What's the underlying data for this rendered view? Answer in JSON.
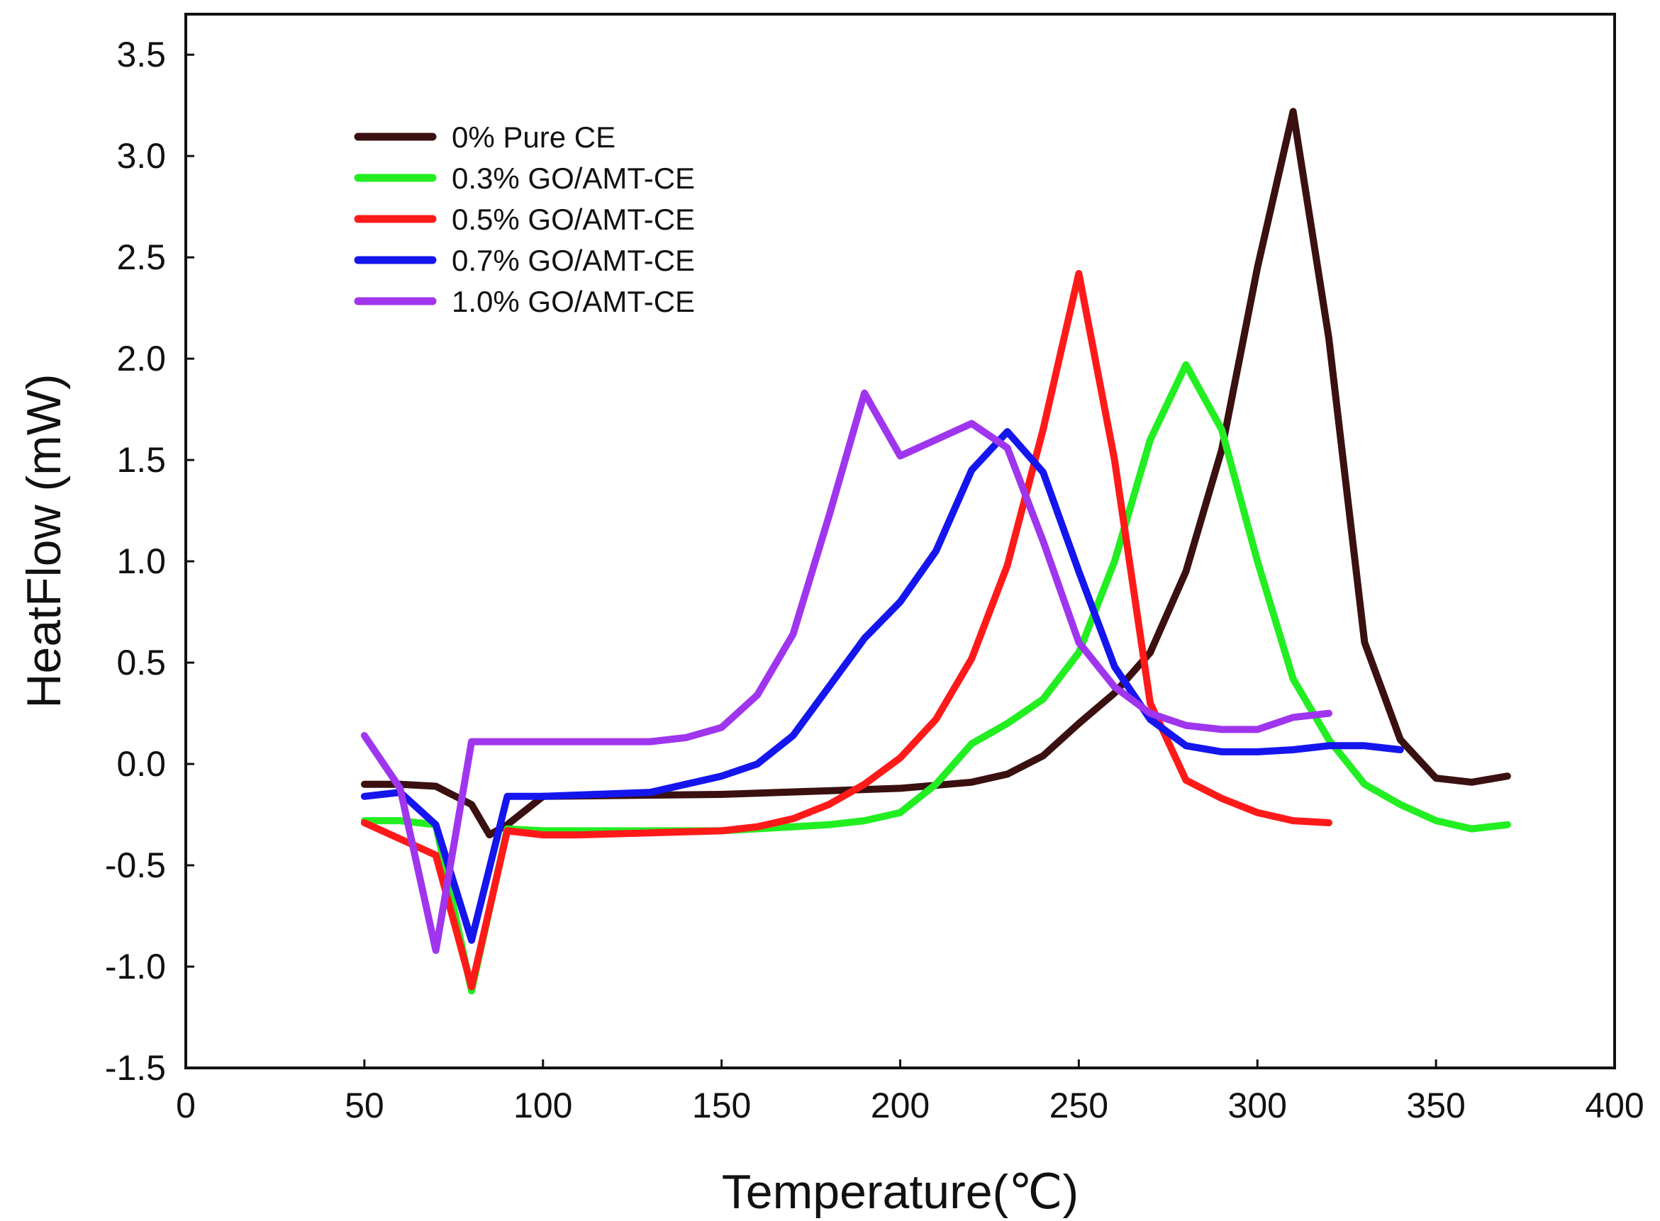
{
  "chart_data": {
    "type": "line",
    "title": "",
    "xlabel": "Temperature(℃)",
    "ylabel": "HeatFlow (mW)",
    "xlim": [
      0,
      400
    ],
    "ylim": [
      -1.5,
      3.7
    ],
    "xticks": [
      0,
      50,
      100,
      150,
      200,
      250,
      300,
      350,
      400
    ],
    "yticks": [
      -1.5,
      -1.0,
      -0.5,
      0.0,
      0.5,
      1.0,
      1.5,
      2.0,
      2.5,
      3.0,
      3.5
    ],
    "xtick_labels": [
      "0",
      "50",
      "100",
      "150",
      "200",
      "250",
      "300",
      "350",
      "400"
    ],
    "ytick_labels": [
      "-1.5",
      "-1.0",
      "-0.5",
      "0.0",
      "0.5",
      "1.0",
      "1.5",
      "2.0",
      "2.5",
      "3.0",
      "3.5"
    ],
    "grid": false,
    "legend_position": "top-left",
    "series": [
      {
        "name": "0% Pure CE",
        "color": "#3a1010",
        "x": [
          50,
          60,
          70,
          80,
          85,
          90,
          100,
          150,
          200,
          220,
          230,
          240,
          250,
          260,
          270,
          280,
          290,
          300,
          310,
          320,
          330,
          340,
          350,
          360,
          370
        ],
        "y": [
          -0.1,
          -0.1,
          -0.11,
          -0.2,
          -0.35,
          -0.3,
          -0.16,
          -0.15,
          -0.12,
          -0.09,
          -0.05,
          0.04,
          0.2,
          0.35,
          0.55,
          0.95,
          1.55,
          2.45,
          3.22,
          2.1,
          0.6,
          0.12,
          -0.07,
          -0.09,
          -0.06
        ]
      },
      {
        "name": "0.3% GO/AMT-CE",
        "color": "#22ee22",
        "x": [
          50,
          60,
          70,
          80,
          90,
          100,
          150,
          180,
          190,
          200,
          210,
          220,
          230,
          240,
          250,
          260,
          270,
          280,
          290,
          300,
          310,
          320,
          330,
          340,
          350,
          360,
          370
        ],
        "y": [
          -0.28,
          -0.28,
          -0.3,
          -1.12,
          -0.32,
          -0.33,
          -0.33,
          -0.3,
          -0.28,
          -0.24,
          -0.1,
          0.1,
          0.2,
          0.32,
          0.55,
          1.0,
          1.6,
          1.97,
          1.65,
          1.0,
          0.42,
          0.12,
          -0.1,
          -0.2,
          -0.28,
          -0.32,
          -0.3
        ]
      },
      {
        "name": "0.5% GO/AMT-CE",
        "color": "#ff1a1a",
        "x": [
          50,
          70,
          80,
          90,
          100,
          110,
          130,
          150,
          160,
          170,
          180,
          190,
          200,
          210,
          220,
          230,
          240,
          250,
          260,
          270,
          280,
          290,
          300,
          310,
          320
        ],
        "y": [
          -0.29,
          -0.45,
          -1.1,
          -0.33,
          -0.35,
          -0.35,
          -0.34,
          -0.33,
          -0.31,
          -0.27,
          -0.2,
          -0.1,
          0.03,
          0.22,
          0.52,
          0.98,
          1.65,
          2.42,
          1.5,
          0.3,
          -0.08,
          -0.17,
          -0.24,
          -0.28,
          -0.29
        ]
      },
      {
        "name": "0.7% GO/AMT-CE",
        "color": "#1515ee",
        "x": [
          50,
          60,
          70,
          80,
          90,
          100,
          130,
          150,
          160,
          170,
          180,
          190,
          200,
          210,
          220,
          230,
          240,
          250,
          260,
          270,
          280,
          290,
          300,
          310,
          320,
          330,
          340
        ],
        "y": [
          -0.16,
          -0.14,
          -0.3,
          -0.87,
          -0.16,
          -0.16,
          -0.14,
          -0.06,
          0.0,
          0.14,
          0.38,
          0.62,
          0.8,
          1.05,
          1.45,
          1.64,
          1.44,
          0.95,
          0.48,
          0.22,
          0.09,
          0.06,
          0.06,
          0.07,
          0.09,
          0.09,
          0.07
        ]
      },
      {
        "name": "1.0% GO/AMT-CE",
        "color": "#a035ee",
        "x": [
          50,
          60,
          70,
          80,
          90,
          100,
          130,
          140,
          150,
          160,
          170,
          180,
          190,
          200,
          210,
          220,
          230,
          240,
          250,
          260,
          270,
          280,
          290,
          300,
          310,
          320
        ],
        "y": [
          0.14,
          -0.12,
          -0.92,
          0.11,
          0.11,
          0.11,
          0.11,
          0.13,
          0.18,
          0.34,
          0.64,
          1.22,
          1.83,
          1.52,
          1.6,
          1.68,
          1.56,
          1.1,
          0.6,
          0.38,
          0.25,
          0.19,
          0.17,
          0.17,
          0.23,
          0.25
        ]
      }
    ]
  }
}
